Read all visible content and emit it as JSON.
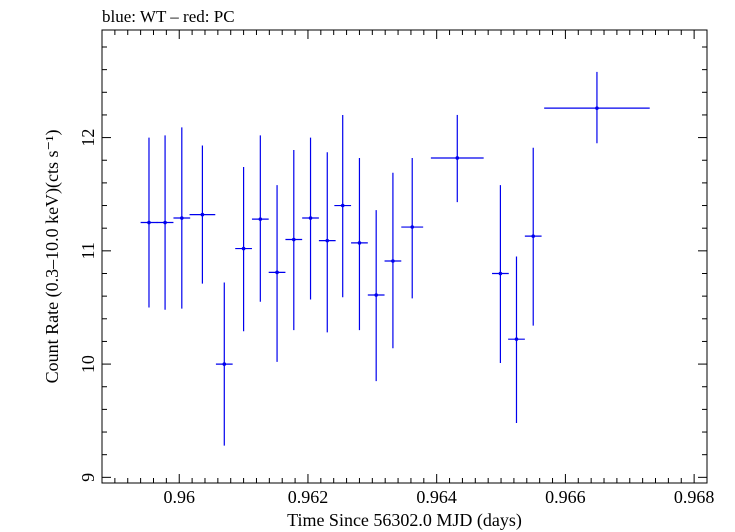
{
  "title": "blue: WT – red: PC",
  "colors": {
    "series": "#0000ee",
    "axes": "#000000",
    "background": "#ffffff"
  },
  "chart_data": {
    "type": "scatter",
    "error_bars": true,
    "xlabel": "Time Since 56302.0 MJD (days)",
    "ylabel": "Count Rate (0.3–10.0 keV)(cts s⁻¹)",
    "xlim": [
      0.9588,
      0.9682
    ],
    "ylim": [
      8.95,
      12.95
    ],
    "x_ticks": [
      0.96,
      0.962,
      0.964,
      0.966,
      0.968
    ],
    "x_tick_labels": [
      "0.96",
      "0.962",
      "0.964",
      "0.966",
      "0.968"
    ],
    "y_ticks": [
      9,
      10,
      11,
      12
    ],
    "y_tick_labels": [
      "9",
      "10",
      "11",
      "12"
    ],
    "grid": false,
    "series": [
      {
        "color": "#0000ee",
        "points": [
          {
            "x": 0.95953,
            "y": 11.25,
            "xerr": 0.00013,
            "ylo": 10.5,
            "yhi": 12.0
          },
          {
            "x": 0.95978,
            "y": 11.25,
            "xerr": 0.00013,
            "ylo": 10.48,
            "yhi": 12.02
          },
          {
            "x": 0.96004,
            "y": 11.29,
            "xerr": 0.00013,
            "ylo": 10.49,
            "yhi": 12.09
          },
          {
            "x": 0.96036,
            "y": 11.32,
            "xerr": 0.0002,
            "ylo": 10.71,
            "yhi": 11.93
          },
          {
            "x": 0.9607,
            "y": 10.0,
            "xerr": 0.00013,
            "ylo": 9.28,
            "yhi": 10.72
          },
          {
            "x": 0.961,
            "y": 11.02,
            "xerr": 0.00013,
            "ylo": 10.29,
            "yhi": 11.74
          },
          {
            "x": 0.96126,
            "y": 11.28,
            "xerr": 0.00013,
            "ylo": 10.55,
            "yhi": 12.02
          },
          {
            "x": 0.96152,
            "y": 10.81,
            "xerr": 0.00013,
            "ylo": 10.02,
            "yhi": 11.58
          },
          {
            "x": 0.96178,
            "y": 11.1,
            "xerr": 0.00013,
            "ylo": 10.3,
            "yhi": 11.89
          },
          {
            "x": 0.96204,
            "y": 11.29,
            "xerr": 0.00013,
            "ylo": 10.57,
            "yhi": 12.0
          },
          {
            "x": 0.9623,
            "y": 11.09,
            "xerr": 0.00013,
            "ylo": 10.28,
            "yhi": 11.87
          },
          {
            "x": 0.96254,
            "y": 11.4,
            "xerr": 0.00013,
            "ylo": 10.59,
            "yhi": 12.2
          },
          {
            "x": 0.9628,
            "y": 11.07,
            "xerr": 0.00013,
            "ylo": 10.3,
            "yhi": 11.82
          },
          {
            "x": 0.96306,
            "y": 10.61,
            "xerr": 0.00013,
            "ylo": 9.85,
            "yhi": 11.36
          },
          {
            "x": 0.96332,
            "y": 10.91,
            "xerr": 0.00013,
            "ylo": 10.14,
            "yhi": 11.69
          },
          {
            "x": 0.96362,
            "y": 11.21,
            "xerr": 0.00017,
            "ylo": 10.58,
            "yhi": 11.82
          },
          {
            "x": 0.96432,
            "y": 11.82,
            "xerr": 0.00041,
            "ylo": 11.43,
            "yhi": 12.2
          },
          {
            "x": 0.96499,
            "y": 10.8,
            "xerr": 0.00013,
            "ylo": 10.01,
            "yhi": 11.58
          },
          {
            "x": 0.96524,
            "y": 10.22,
            "xerr": 0.00013,
            "ylo": 9.48,
            "yhi": 10.95
          },
          {
            "x": 0.9655,
            "y": 11.13,
            "xerr": 0.00013,
            "ylo": 10.34,
            "yhi": 11.91
          },
          {
            "x": 0.96649,
            "y": 12.26,
            "xerr": 0.00082,
            "ylo": 11.95,
            "yhi": 12.58
          }
        ]
      }
    ]
  }
}
